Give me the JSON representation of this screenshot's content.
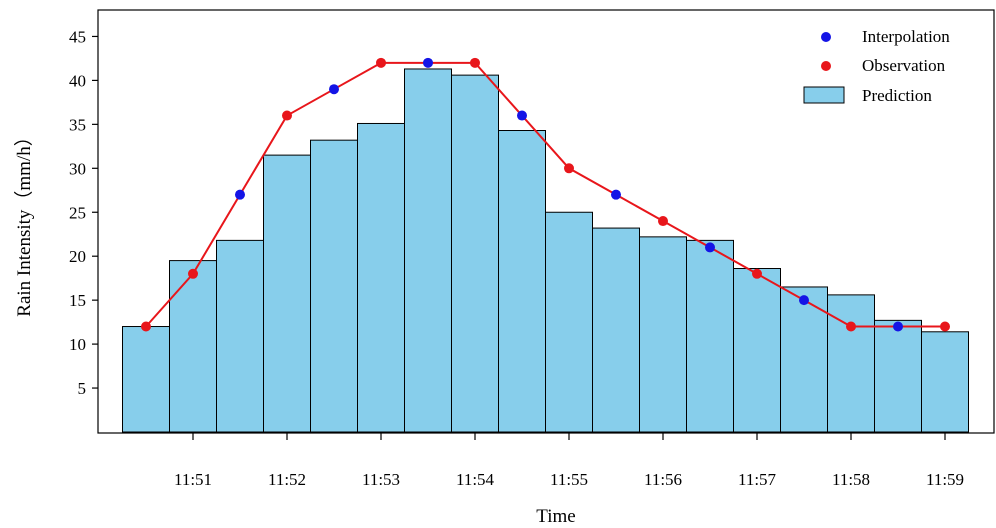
{
  "chart_data": {
    "type": "bar+line",
    "xlabel": "Time",
    "ylabel": "Rain Intensity（mm/h）",
    "ylim": [
      0,
      48
    ],
    "yticks": [
      5,
      10,
      15,
      20,
      25,
      30,
      35,
      40,
      45
    ],
    "xtick_labels": [
      "11:51",
      "11:52",
      "11:53",
      "11:54",
      "11:55",
      "11:56",
      "11:57",
      "11:58",
      "11:59"
    ],
    "grid": false,
    "legend_placement": "top-right",
    "prediction": {
      "name": "Prediction",
      "bin_width_min": 0.5,
      "bins_start": [
        "11:50:15",
        "11:50:45",
        "11:51:15",
        "11:51:45",
        "11:52:15",
        "11:52:45",
        "11:53:15",
        "11:53:45",
        "11:54:15",
        "11:54:45",
        "11:55:15",
        "11:55:45",
        "11:56:15",
        "11:56:45",
        "11:57:15",
        "11:57:45",
        "11:58:15",
        "11:58:45"
      ],
      "values": [
        12.0,
        19.5,
        21.8,
        31.5,
        33.2,
        35.1,
        41.3,
        40.6,
        34.3,
        25.0,
        23.2,
        22.2,
        21.8,
        18.6,
        16.5,
        15.6,
        12.7,
        11.4
      ]
    },
    "observation": {
      "name": "Observation",
      "time": [
        "11:50:30",
        "11:51:00",
        "11:51:30",
        "11:52:00",
        "11:52:30",
        "11:53:00",
        "11:53:30",
        "11:54:00",
        "11:54:30",
        "11:55:00",
        "11:55:30",
        "11:56:00",
        "11:56:30",
        "11:57:00",
        "11:57:30",
        "11:58:00",
        "11:58:30",
        "11:59:00"
      ],
      "values": [
        12,
        18,
        27,
        36,
        39,
        42,
        42,
        42,
        36,
        30,
        27,
        24,
        21,
        18,
        15,
        12,
        12,
        12
      ]
    },
    "interpolation": {
      "name": "Interpolation",
      "time": [
        "11:51:30",
        "11:52:30",
        "11:53:30",
        "11:54:30",
        "11:55:30",
        "11:56:30",
        "11:57:30",
        "11:58:30"
      ],
      "values": [
        27,
        39,
        42,
        36,
        27,
        21,
        15,
        12
      ]
    },
    "legend": [
      "Interpolation",
      "Observation",
      "Prediction"
    ],
    "colors": {
      "bar_fill": "#87CEEB",
      "bar_edge": "#000000",
      "observation": "#E8161B",
      "interpolation": "#1414E6"
    }
  }
}
